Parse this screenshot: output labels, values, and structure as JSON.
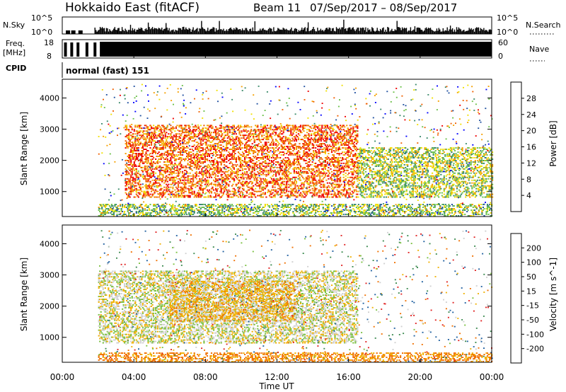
{
  "header": {
    "station": "Hokkaido East (fitACF)",
    "beam": "Beam 11",
    "date_range": "07/Sep/2017 – 08/Sep/2017"
  },
  "noise_panel": {
    "left_label": "N.Sky",
    "right_label": "N.Search",
    "tick_top": "10^5",
    "tick_bottom": "10^0"
  },
  "freq_panel": {
    "left_label_1": "Freq.",
    "left_label_2": "[MHz]",
    "right_label": "Nave",
    "left_ticks": [
      "18",
      "8"
    ],
    "right_ticks": [
      "60",
      "0"
    ]
  },
  "cpid_panel": {
    "label": "CPID",
    "mode": "normal (fast) 151"
  },
  "chart_data": [
    {
      "type": "heatmap",
      "parameter": "Power",
      "ylabel": "Slant Range [km]",
      "colorbar_label": "Power [dB]",
      "colorbar_ticks": [
        "4",
        "8",
        "12",
        "16",
        "20",
        "24",
        "28"
      ],
      "colorbar_colors": [
        "#0000ff",
        "#2050a0",
        "#3b8a6a",
        "#6cc04a",
        "#f0e000",
        "#f5a000",
        "#f06000",
        "#ee0000"
      ],
      "x_ticks": [
        "00:00",
        "04:00",
        "08:00",
        "12:00",
        "16:00",
        "20:00",
        "00:00"
      ],
      "y_ticks": [
        "1000",
        "2000",
        "3000",
        "4000"
      ],
      "xlim_hours": [
        0,
        24
      ],
      "ylim_km": [
        200,
        4600
      ],
      "features": [
        {
          "from_h": 3.5,
          "to_h": 16.5,
          "range_km": [
            800,
            3100
          ],
          "level_db": 26
        },
        {
          "from_h": 16.5,
          "to_h": 24,
          "range_km": [
            800,
            2400
          ],
          "level_db": 16
        },
        {
          "from_h": 2.0,
          "to_h": 24,
          "range_km": [
            200,
            600
          ],
          "level_db": 14
        }
      ]
    },
    {
      "type": "heatmap",
      "parameter": "Velocity",
      "ylabel": "Slant Range [km]",
      "xlabel": "Time UT",
      "colorbar_label": "Velocity [m s^-1]",
      "colorbar_ticks": [
        "200",
        "100",
        "50",
        "15",
        "-15",
        "-50",
        "-100",
        "-200"
      ],
      "colorbar_colors": [
        "#1030c0",
        "#2060a0",
        "#3c8a50",
        "#7ac040",
        "#d0d0d0",
        "#f0b000",
        "#f07000",
        "#e02020",
        "#ee0000"
      ],
      "x_ticks": [
        "00:00",
        "04:00",
        "08:00",
        "12:00",
        "16:00",
        "20:00",
        "00:00"
      ],
      "y_ticks": [
        "1000",
        "2000",
        "3000",
        "4000"
      ],
      "xlim_hours": [
        0,
        24
      ],
      "ylim_km": [
        200,
        4600
      ],
      "features": [
        {
          "from_h": 2.0,
          "to_h": 16.5,
          "range_km": [
            800,
            3100
          ],
          "level_ms": 0
        },
        {
          "from_h": 6.0,
          "to_h": 13.0,
          "range_km": [
            1500,
            2800
          ],
          "level_ms": -30
        },
        {
          "from_h": 2.0,
          "to_h": 24,
          "range_km": [
            200,
            500
          ],
          "level_ms": -60
        }
      ]
    }
  ],
  "footer": {
    "xlabel": "Time UT"
  }
}
